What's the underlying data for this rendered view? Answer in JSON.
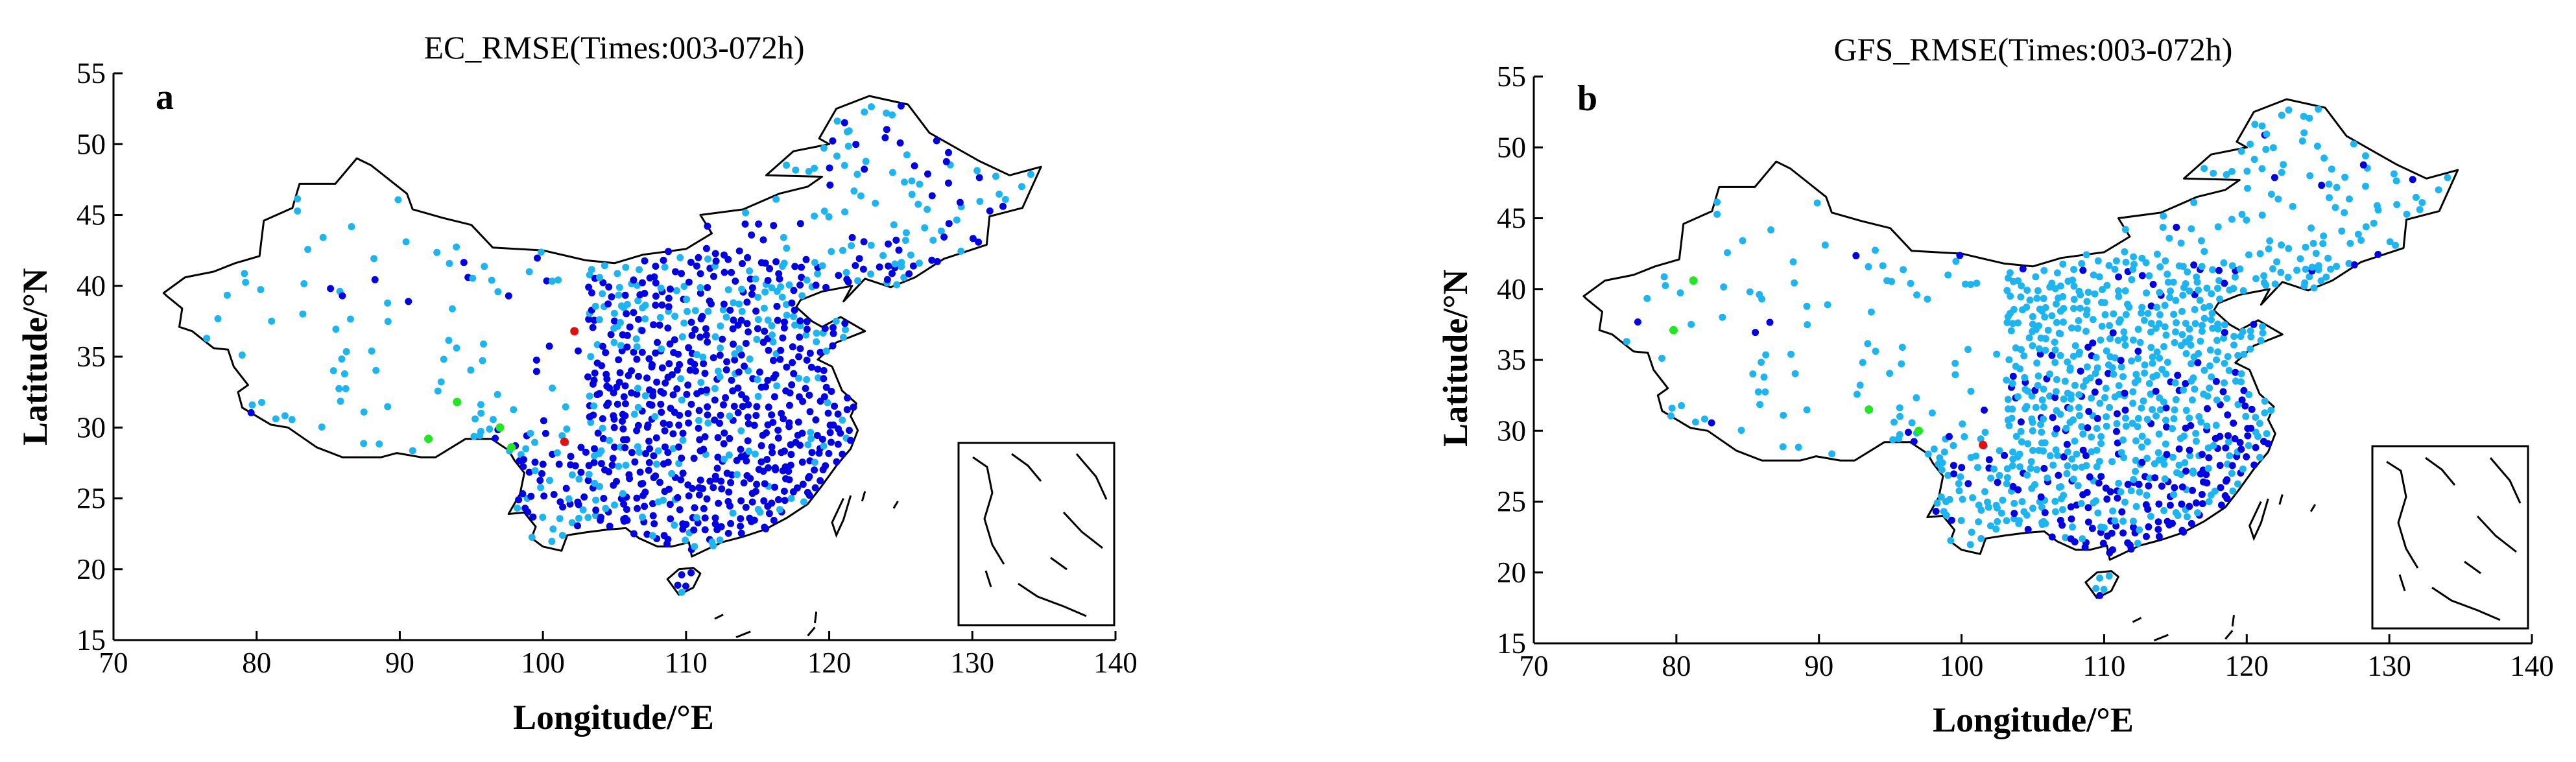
{
  "colors": {
    "level_1": "#0000e0",
    "level_2": "#1010c8",
    "level_3": "#1eb4f0",
    "level_4": "#30d2f5",
    "level_5": "#22e622",
    "level_6": "#e01010",
    "axis": "#000000",
    "border": "#000000"
  },
  "chart_data": [
    {
      "type": "scatter",
      "panel": "a",
      "title": "EC_RMSE(Times:003-072h)",
      "xlabel": "Longitude/°E",
      "ylabel": "Latitude/°N",
      "xlim": [
        70,
        140
      ],
      "ylim": [
        15,
        55
      ],
      "xticks": [
        70,
        80,
        90,
        100,
        110,
        120,
        130,
        140
      ],
      "yticks": [
        15,
        20,
        25,
        30,
        35,
        40,
        45,
        50,
        55
      ],
      "grid": false,
      "legend": "none",
      "note": "station markers colored by RMSE category; mostly dark blue east of 105°E, cyan in west and north-east",
      "highlighted_points": [
        {
          "lon": 94.0,
          "lat": 31.8,
          "color_level": 5
        },
        {
          "lon": 97.0,
          "lat": 30.0,
          "color_level": 5
        },
        {
          "lon": 92.0,
          "lat": 29.2,
          "color_level": 5
        },
        {
          "lon": 97.8,
          "lat": 28.6,
          "color_level": 5
        },
        {
          "lon": 101.5,
          "lat": 29.0,
          "color_level": 6
        },
        {
          "lon": 102.2,
          "lat": 36.8,
          "color_level": 6
        }
      ]
    },
    {
      "type": "scatter",
      "panel": "b",
      "title": "GFS_RMSE(Times:003-072h)",
      "xlabel": "Longitude/°E",
      "ylabel": "Latitude/°N",
      "xlim": [
        70,
        140
      ],
      "ylim": [
        15,
        55
      ],
      "xticks": [
        70,
        80,
        90,
        100,
        110,
        120,
        130,
        140
      ],
      "yticks": [
        15,
        20,
        25,
        30,
        35,
        40,
        45,
        50,
        55
      ],
      "grid": false,
      "legend": "none",
      "note": "station markers colored by RMSE category; mostly cyan, dark blue concentrated in south-east",
      "highlighted_points": [
        {
          "lon": 81.2,
          "lat": 40.6,
          "color_level": 5
        },
        {
          "lon": 79.8,
          "lat": 37.1,
          "color_level": 5
        },
        {
          "lon": 93.5,
          "lat": 31.5,
          "color_level": 5
        },
        {
          "lon": 97.0,
          "lat": 30.0,
          "color_level": 5
        },
        {
          "lon": 101.5,
          "lat": 29.0,
          "color_level": 6
        }
      ]
    }
  ]
}
